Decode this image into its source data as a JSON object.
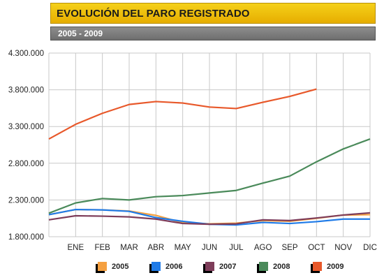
{
  "header": {
    "title": "EVOLUCIÓN DEL PARO REGISTRADO",
    "subtitle": "2005 - 2009"
  },
  "chart_data": {
    "type": "line",
    "title": "EVOLUCIÓN DEL PARO REGISTRADO",
    "subtitle": "2005 - 2009",
    "x_labels": [
      "ENE",
      "FEB",
      "MAR",
      "ABR",
      "MAY",
      "JUN",
      "JUL",
      "AGO",
      "SEP",
      "OCT",
      "NOV",
      "DIC"
    ],
    "y_ticks": [
      "1.800.000",
      "2.300.000",
      "2.800.000",
      "3.300.000",
      "3.800.000",
      "4.300.000"
    ],
    "ylim": [
      1800000,
      4300000
    ],
    "grid": true,
    "legend": "bottom",
    "series": [
      {
        "name": "2005",
        "color": "#f5a040",
        "values": [
          2100000,
          2170000,
          2165000,
          2150000,
          2090000,
          1990000,
          1975000,
          1985000,
          2020000,
          2010000,
          2050000,
          2095000,
          2100000
        ]
      },
      {
        "name": "2006",
        "color": "#1f7be8",
        "values": [
          2100000,
          2170000,
          2165000,
          2145000,
          2060000,
          2010000,
          1970000,
          1960000,
          1995000,
          1980000,
          2005000,
          2040000,
          2040000
        ]
      },
      {
        "name": "2007",
        "color": "#7e3d5a",
        "values": [
          2030000,
          2085000,
          2080000,
          2070000,
          2040000,
          1980000,
          1970000,
          1975000,
          2030000,
          2020000,
          2055000,
          2095000,
          2125000
        ]
      },
      {
        "name": "2008",
        "color": "#4a8a5a",
        "values": [
          2120000,
          2260000,
          2320000,
          2300000,
          2345000,
          2360000,
          2395000,
          2430000,
          2530000,
          2625000,
          2820000,
          2995000,
          3130000
        ]
      },
      {
        "name": "2009",
        "color": "#e8582a",
        "values": [
          3130000,
          3330000,
          3480000,
          3600000,
          3640000,
          3620000,
          3565000,
          3545000,
          3630000,
          3710000,
          3810000
        ]
      }
    ]
  }
}
